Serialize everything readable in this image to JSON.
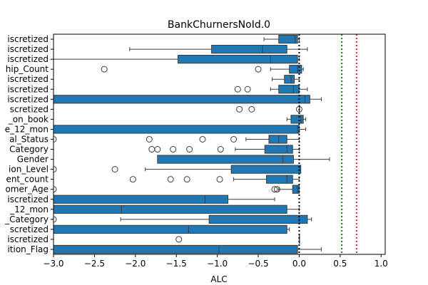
{
  "chart_data": {
    "type": "box",
    "orientation": "horizontal",
    "title": "BankChurnersNoId.0",
    "xlabel": "ALC",
    "ylabel": "",
    "xlim": [
      -3.0,
      1.05
    ],
    "xticks": [
      -3.0,
      -2.5,
      -2.0,
      -1.5,
      -1.0,
      -0.5,
      0.0,
      0.5,
      1.0
    ],
    "xtick_labels": [
      "−3.0",
      "−2.5",
      "−2.0",
      "−1.5",
      "−1.0",
      "−0.5",
      "0.0",
      "0.5",
      "1.0"
    ],
    "box_color": "#1f77b4",
    "reference_lines": [
      {
        "x": 0.0,
        "color": "#000000",
        "style": "dotted"
      },
      {
        "x": 0.52,
        "color": "#008000",
        "style": "dotted"
      },
      {
        "x": 0.7,
        "color": "#d62728",
        "style": "dotted"
      }
    ],
    "categories": [
      "iscretized",
      "iscretized",
      "iscretized",
      "hip_Count",
      "iscretized",
      "iscretized",
      "iscretized",
      "scretized",
      "_on_book",
      "e_12_mon",
      "al_Status",
      "Category",
      "Gender",
      "ion_Level",
      "ent_count",
      "omer_Age",
      "iscretized",
      "_12_mon",
      "_Category",
      "scretized",
      "iscretized",
      "ition_Flag"
    ],
    "boxes": [
      {
        "q1": -0.25,
        "median": -0.05,
        "q3": -0.02,
        "whisker_low": -0.43,
        "whisker_high": 0.0,
        "outliers": []
      },
      {
        "q1": -1.07,
        "median": -0.45,
        "q3": -0.15,
        "whisker_low": -2.07,
        "whisker_high": 0.1,
        "outliers": []
      },
      {
        "q1": -1.48,
        "median": -0.35,
        "q3": -0.02,
        "whisker_low": -3.0,
        "whisker_high": 0.0,
        "outliers": []
      },
      {
        "q1": -0.12,
        "median": -0.02,
        "q3": 0.03,
        "whisker_low": -0.35,
        "whisker_high": 0.05,
        "outliers": [
          -2.38,
          -0.5
        ]
      },
      {
        "q1": -0.18,
        "median": -0.1,
        "q3": -0.06,
        "whisker_low": -0.33,
        "whisker_high": 0.0,
        "outliers": []
      },
      {
        "q1": -0.25,
        "median": -0.07,
        "q3": 0.0,
        "whisker_low": -0.35,
        "whisker_high": 0.1,
        "outliers": [
          -0.75,
          -0.63
        ]
      },
      {
        "q1": -3.0,
        "median": 0.07,
        "q3": 0.13,
        "whisker_low": -3.0,
        "whisker_high": 0.27,
        "outliers": []
      },
      {
        "q1": 0.0,
        "median": 0.0,
        "q3": 0.0,
        "whisker_low": 0.0,
        "whisker_high": 0.0,
        "outliers": [
          -0.73,
          -0.58,
          0.0
        ]
      },
      {
        "q1": -0.1,
        "median": 0.02,
        "q3": 0.05,
        "whisker_low": -0.15,
        "whisker_high": 0.08,
        "outliers": []
      },
      {
        "q1": -3.0,
        "median": -0.02,
        "q3": 0.0,
        "whisker_low": -3.0,
        "whisker_high": 0.08,
        "outliers": []
      },
      {
        "q1": -0.37,
        "median": -0.25,
        "q3": -0.15,
        "whisker_low": -0.65,
        "whisker_high": 0.0,
        "outliers": [
          -3.0,
          -1.83,
          -1.18,
          -0.8
        ]
      },
      {
        "q1": -0.42,
        "median": -0.15,
        "q3": -0.08,
        "whisker_low": -0.78,
        "whisker_high": 0.0,
        "outliers": [
          -1.8,
          -1.73,
          -1.54,
          -1.34,
          -0.96
        ]
      },
      {
        "q1": -1.73,
        "median": -0.2,
        "q3": -0.07,
        "whisker_low": -1.73,
        "whisker_high": 0.37,
        "outliers": []
      },
      {
        "q1": -0.83,
        "median": 0.0,
        "q3": 0.02,
        "whisker_low": -1.88,
        "whisker_high": 0.02,
        "outliers": [
          -3.0,
          -2.25
        ]
      },
      {
        "q1": -0.4,
        "median": -0.15,
        "q3": -0.08,
        "whisker_low": -0.8,
        "whisker_high": 0.0,
        "outliers": [
          -2.03,
          -1.57,
          -1.37,
          -0.97
        ]
      },
      {
        "q1": -0.08,
        "median": -0.02,
        "q3": 0.0,
        "whisker_low": -0.25,
        "whisker_high": 0.0,
        "outliers": [
          -3.0,
          -0.3,
          -0.27
        ]
      },
      {
        "q1": -3.0,
        "median": -1.15,
        "q3": -0.87,
        "whisker_low": -3.0,
        "whisker_high": -0.3,
        "outliers": []
      },
      {
        "q1": -3.0,
        "median": -2.17,
        "q3": -0.15,
        "whisker_low": -3.0,
        "whisker_high": 0.0,
        "outliers": []
      },
      {
        "q1": -1.1,
        "median": 0.0,
        "q3": 0.1,
        "whisker_low": -2.18,
        "whisker_high": 0.15,
        "outliers": [
          -3.0
        ]
      },
      {
        "q1": -3.0,
        "median": -1.35,
        "q3": -0.15,
        "whisker_low": -3.0,
        "whisker_high": -0.12,
        "outliers": []
      },
      {
        "q1": 0.0,
        "median": 0.0,
        "q3": 0.0,
        "whisker_low": 0.0,
        "whisker_high": 0.0,
        "outliers": [
          -1.47
        ]
      },
      {
        "q1": -3.0,
        "median": -0.98,
        "q3": -0.02,
        "whisker_low": -3.0,
        "whisker_high": 0.27,
        "outliers": []
      }
    ],
    "grid": false,
    "legend": "none"
  }
}
